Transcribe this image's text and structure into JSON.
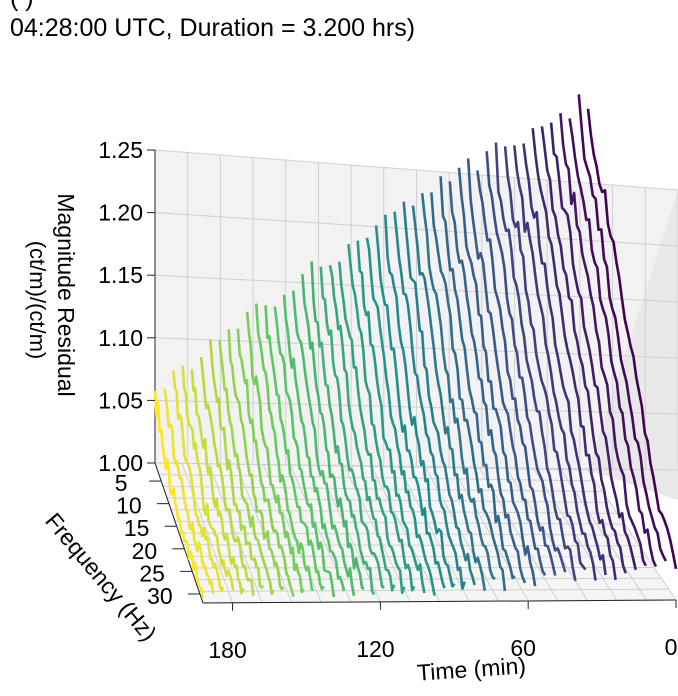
{
  "title": {
    "line1": "(                  )",
    "line2": "04:28:00 UTC, Duration = 3.200 hrs)"
  },
  "chart_data": {
    "type": "line",
    "subtype": "3d-waterfall",
    "ylabel_lines": [
      "Magnitude Residual",
      "(ct/m)/(ct/m)"
    ],
    "xlabel": "Time (min)",
    "frequency_label": "Frequency (Hz)",
    "z_ticks": [
      "1.00",
      "1.05",
      "1.10",
      "1.15",
      "1.20",
      "1.25"
    ],
    "zlim": [
      1.0,
      1.25
    ],
    "time_ticks": [
      "180",
      "120",
      "60",
      "0"
    ],
    "time_range": [
      0,
      192
    ],
    "freq_ticks": [
      "5",
      "10",
      "15",
      "20",
      "25",
      "30"
    ],
    "freq_range": [
      1,
      32
    ],
    "colormap": [
      "#440154",
      "#3b528b",
      "#21918c",
      "#5ec962",
      "#fde725"
    ],
    "grid": true,
    "series_count": 48,
    "description_values": {
      "low_freq_start": 1.01,
      "high_freq_end_above_axis": 1.3
    },
    "series": [
      {
        "time": 0,
        "values": [
          1.31,
          1.29,
          1.28,
          1.27,
          1.26,
          1.26,
          1.25,
          1.24,
          1.23,
          1.22,
          1.21,
          1.2,
          1.19,
          1.18,
          1.17,
          1.16,
          1.15,
          1.14,
          1.13,
          1.12,
          1.11,
          1.1,
          1.09,
          1.08,
          1.07,
          1.06,
          1.06,
          1.05,
          1.05,
          1.04,
          1.04,
          1.03
        ]
      },
      {
        "time": 96,
        "values": [
          1.2,
          1.18,
          1.17,
          1.16,
          1.15,
          1.15,
          1.14,
          1.13,
          1.12,
          1.11,
          1.1,
          1.09,
          1.08,
          1.08,
          1.07,
          1.07,
          1.06,
          1.06,
          1.05,
          1.05,
          1.04,
          1.04,
          1.04,
          1.03,
          1.03,
          1.03,
          1.02,
          1.02,
          1.02,
          1.02,
          1.01,
          1.01
        ]
      },
      {
        "time": 192,
        "values": [
          1.06,
          1.05,
          1.05,
          1.04,
          1.04,
          1.04,
          1.03,
          1.03,
          1.03,
          1.02,
          1.02,
          1.02,
          1.02,
          1.01,
          1.01,
          1.01,
          1.01,
          1.01,
          1.01,
          1.01,
          1.01,
          1.01,
          1.01,
          1.01,
          1.01,
          1.01,
          1.01,
          1.01,
          1.01,
          1.01,
          1.01,
          1.01
        ]
      }
    ]
  }
}
